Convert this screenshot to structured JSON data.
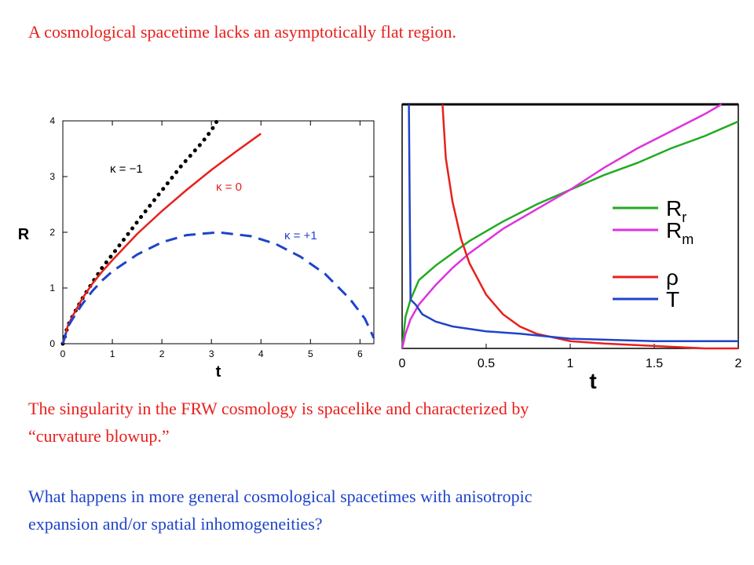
{
  "slide": {
    "title_line": "A cosmological  spacetime lacks an asymptotically  flat region.",
    "body_line_1": "The singularity in the FRW cosmology is spacelike and characterized by",
    "body_line_2": "“curvature blowup.”",
    "body_line_3": "What happens in more general cosmological  spacetimes  with anisotropic",
    "body_line_4": "expansion and/or spatial inhomogeneities?",
    "colors": {
      "title": "#e8201c",
      "body": "#1f44c8"
    }
  },
  "chart_data": [
    {
      "type": "line",
      "xlabel": "t",
      "ylabel": "R",
      "xlim": [
        0,
        6.28
      ],
      "ylim": [
        0,
        4
      ],
      "xticks": [
        0,
        1,
        2,
        3,
        4,
        5,
        6
      ],
      "yticks": [
        0,
        1,
        2,
        3,
        4
      ],
      "series": [
        {
          "name": "κ = −1",
          "color": "#000000",
          "style": "dotted",
          "x": [
            0.0,
            0.1,
            0.2,
            0.4,
            0.6,
            0.8,
            1.0,
            1.3,
            1.6,
            2.0,
            2.4,
            2.8,
            3.0,
            3.1
          ],
          "y": [
            0.0,
            0.32,
            0.5,
            0.82,
            1.1,
            1.37,
            1.6,
            1.95,
            2.3,
            2.75,
            3.2,
            3.6,
            3.83,
            3.98
          ]
        },
        {
          "name": "κ = 0",
          "color": "#e8201c",
          "style": "solid",
          "x": [
            0.0,
            0.1,
            0.2,
            0.4,
            0.6,
            0.8,
            1.0,
            1.5,
            2.0,
            2.5,
            3.0,
            3.5,
            4.0
          ],
          "y": [
            0.0,
            0.32,
            0.5,
            0.82,
            1.08,
            1.3,
            1.5,
            1.97,
            2.38,
            2.76,
            3.12,
            3.45,
            3.77
          ]
        },
        {
          "name": "κ = +1",
          "color": "#1f44c8",
          "style": "dashed",
          "x": [
            0.0,
            0.1,
            0.2,
            0.4,
            0.6,
            0.8,
            1.0,
            1.5,
            2.0,
            2.5,
            3.14,
            3.8,
            4.3,
            4.8,
            5.3,
            5.8,
            6.1,
            6.28
          ],
          "y": [
            0.0,
            0.3,
            0.45,
            0.72,
            0.95,
            1.14,
            1.3,
            1.6,
            1.82,
            1.95,
            2.0,
            1.93,
            1.79,
            1.56,
            1.25,
            0.8,
            0.45,
            0.1
          ]
        }
      ]
    },
    {
      "type": "line",
      "xlabel": "t",
      "xlim": [
        0,
        2
      ],
      "xticks": [
        0,
        0.5,
        1,
        1.5,
        2
      ],
      "xtick_labels": [
        "0",
        "0.5",
        "1",
        "1.5",
        "2"
      ],
      "legend_position": "center-right",
      "series": [
        {
          "name": "Rr",
          "color": "#22aa22",
          "x": [
            0.0,
            0.02,
            0.05,
            0.1,
            0.2,
            0.3,
            0.4,
            0.5,
            0.6,
            0.8,
            1.0,
            1.2,
            1.4,
            1.6,
            1.8,
            2.0
          ],
          "y": [
            0.0,
            0.13,
            0.2,
            0.28,
            0.34,
            0.39,
            0.44,
            0.48,
            0.52,
            0.59,
            0.65,
            0.71,
            0.76,
            0.82,
            0.87,
            0.93
          ]
        },
        {
          "name": "Rm",
          "color": "#dd33dd",
          "x": [
            0.0,
            0.02,
            0.05,
            0.1,
            0.2,
            0.3,
            0.4,
            0.5,
            0.6,
            0.8,
            1.0,
            1.2,
            1.4,
            1.6,
            1.8,
            1.9
          ],
          "y": [
            0.0,
            0.06,
            0.12,
            0.18,
            0.26,
            0.33,
            0.39,
            0.44,
            0.49,
            0.57,
            0.65,
            0.74,
            0.82,
            0.89,
            0.96,
            1.0
          ]
        },
        {
          "name": "ρ",
          "color": "#e8201c",
          "x": [
            0.24,
            0.26,
            0.3,
            0.35,
            0.4,
            0.5,
            0.6,
            0.7,
            0.8,
            1.0,
            1.2,
            1.5,
            1.8,
            2.0
          ],
          "y": [
            1.0,
            0.78,
            0.6,
            0.45,
            0.35,
            0.22,
            0.14,
            0.09,
            0.06,
            0.03,
            0.02,
            0.01,
            0.0,
            0.0
          ]
        },
        {
          "name": "T",
          "color": "#1f44c8",
          "x": [
            0.04,
            0.045,
            0.05,
            0.08,
            0.12,
            0.2,
            0.3,
            0.5,
            0.7,
            1.0,
            1.5,
            2.0
          ],
          "y": [
            1.0,
            0.6,
            0.2,
            0.18,
            0.14,
            0.11,
            0.09,
            0.07,
            0.06,
            0.04,
            0.03,
            0.03
          ]
        }
      ]
    }
  ]
}
